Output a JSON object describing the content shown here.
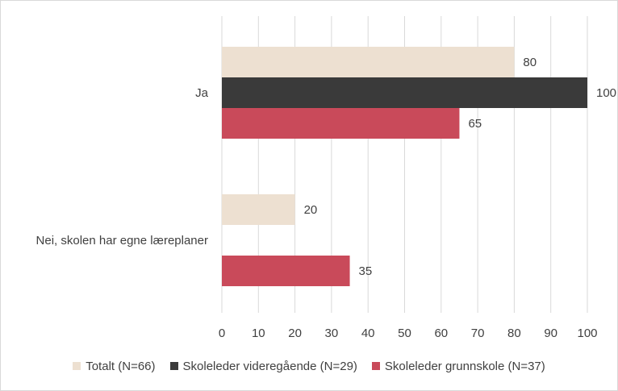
{
  "chart_data": {
    "type": "bar",
    "orientation": "horizontal",
    "categories": [
      "Ja",
      "Nei, skolen har egne læreplaner"
    ],
    "series": [
      {
        "name": "Totalt (N=66)",
        "values": [
          80,
          20
        ],
        "color": "#ede0d1"
      },
      {
        "name": "Skoleleder videregående (N=29)",
        "values": [
          100,
          null
        ],
        "color": "#3a3a3a"
      },
      {
        "name": "Skoleleder grunnskole (N=37)",
        "values": [
          65,
          35
        ],
        "color": "#c94a5a"
      }
    ],
    "xlim": [
      0,
      100
    ],
    "xticks": [
      "0",
      "10",
      "20",
      "30",
      "40",
      "50",
      "60",
      "70",
      "80",
      "90",
      "100"
    ],
    "grid": true,
    "legend_position": "bottom"
  }
}
